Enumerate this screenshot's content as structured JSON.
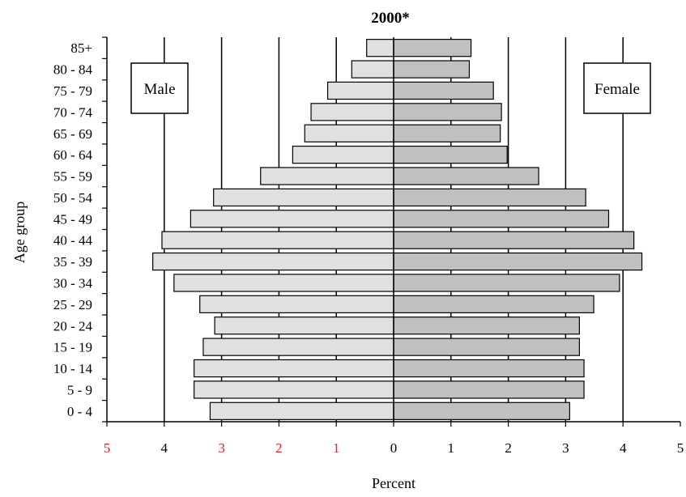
{
  "chart_data": {
    "type": "bar",
    "orientation": "horizontal",
    "title": "2000*",
    "xlabel": "Percent",
    "ylabel": "Age group",
    "categories": [
      "0 - 4",
      "5 - 9",
      "10 - 14",
      "15 - 19",
      "20 - 24",
      "25 - 29",
      "30 - 34",
      "35 - 39",
      "40 - 44",
      "45 - 49",
      "50 - 54",
      "55 - 59",
      "60 - 64",
      "65 - 69",
      "70 - 74",
      "75 - 79",
      "80 - 84",
      "85+"
    ],
    "series": [
      {
        "name": "Male",
        "side": "left",
        "color": "#e0e0e0",
        "values": [
          3.2,
          3.48,
          3.48,
          3.32,
          3.12,
          3.38,
          3.83,
          4.2,
          4.04,
          3.54,
          3.14,
          2.32,
          1.76,
          1.55,
          1.44,
          1.15,
          0.73,
          0.47
        ]
      },
      {
        "name": "Female",
        "side": "right",
        "color": "#c0c0c0",
        "values": [
          3.07,
          3.32,
          3.32,
          3.24,
          3.24,
          3.49,
          3.94,
          4.33,
          4.19,
          3.75,
          3.35,
          2.53,
          1.98,
          1.86,
          1.88,
          1.74,
          1.32,
          1.35
        ]
      }
    ],
    "x_ticks_left": [
      "5",
      "4",
      "3",
      "2",
      "1"
    ],
    "x_ticks_right": [
      "0",
      "1",
      "2",
      "3",
      "4",
      "5"
    ],
    "xlim": [
      -5,
      5
    ],
    "grid": "vertical",
    "left_tick_colors": [
      "#e8231f",
      "#000000",
      "#e8231f",
      "#e8231f",
      "#e8231f"
    ]
  }
}
